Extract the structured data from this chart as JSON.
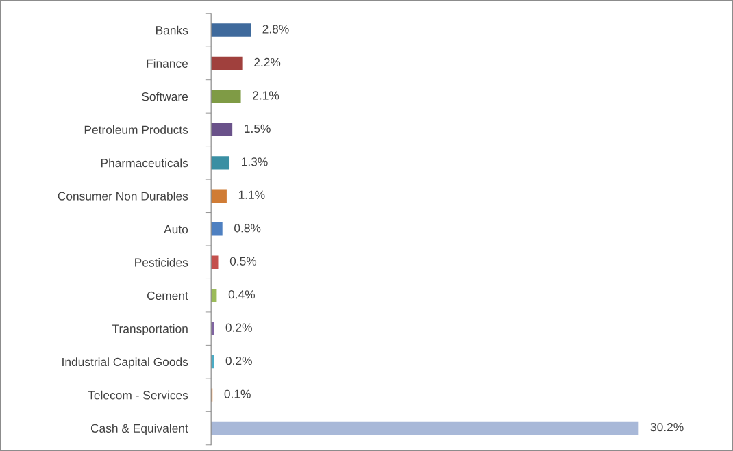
{
  "chart_data": {
    "type": "bar",
    "orientation": "horizontal",
    "categories": [
      "Banks",
      "Finance",
      "Software",
      "Petroleum Products",
      "Pharmaceuticals",
      "Consumer Non Durables",
      "Auto",
      "Pesticides",
      "Cement",
      "Transportation",
      "Industrial Capital Goods",
      "Telecom - Services",
      "Cash & Equivalent"
    ],
    "values": [
      2.8,
      2.2,
      2.1,
      1.5,
      1.3,
      1.1,
      0.8,
      0.5,
      0.4,
      0.2,
      0.2,
      0.1,
      30.2
    ],
    "value_labels": [
      "2.8%",
      "2.2%",
      "2.1%",
      "1.5%",
      "1.3%",
      "1.1%",
      "0.8%",
      "0.5%",
      "0.4%",
      "0.2%",
      "0.2%",
      "0.1%",
      "30.2%"
    ],
    "colors": [
      "#3f6a9c",
      "#a0403d",
      "#7f9b45",
      "#6a528a",
      "#3a8fa3",
      "#d07c35",
      "#4e80c1",
      "#c4504d",
      "#9bbb59",
      "#8064a2",
      "#4bacc6",
      "#f79646",
      "#a8b8d8"
    ],
    "tick_labels": "y",
    "grid": false,
    "legend": false
  }
}
